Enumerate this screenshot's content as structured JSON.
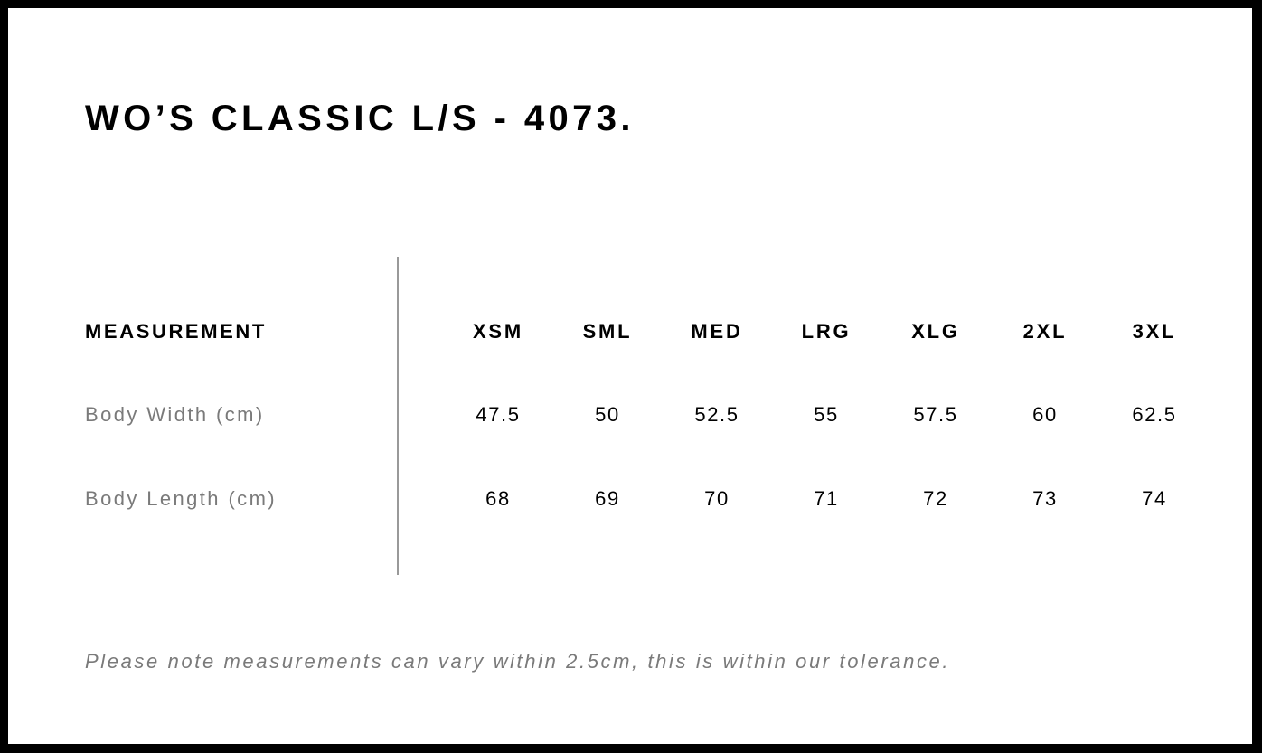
{
  "title": "WO’S CLASSIC L/S - 4073.",
  "table": {
    "header_label": "MEASUREMENT",
    "sizes": [
      "XSM",
      "SML",
      "MED",
      "LRG",
      "XLG",
      "2XL",
      "3XL"
    ],
    "rows": [
      {
        "label": "Body Width (cm)",
        "values": [
          "47.5",
          "50",
          "52.5",
          "55",
          "57.5",
          "60",
          "62.5"
        ]
      },
      {
        "label": "Body Length (cm)",
        "values": [
          "68",
          "69",
          "70",
          "71",
          "72",
          "73",
          "74"
        ]
      }
    ]
  },
  "note": "Please note measurements can vary within 2.5cm, this is within our tolerance."
}
